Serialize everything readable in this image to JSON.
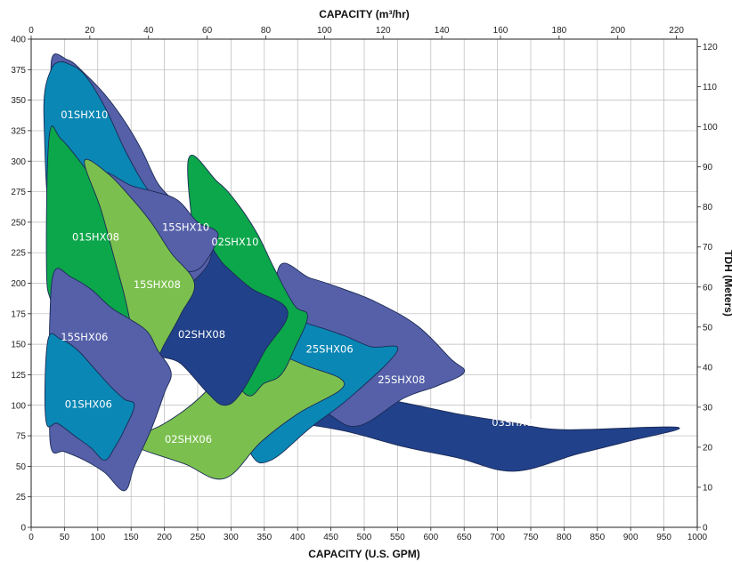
{
  "chart_data": {
    "type": "area",
    "title": "",
    "xlabel_bottom": "CAPACITY (U.S. GPM)",
    "xlabel_top": "CAPACITY (m³/hr)",
    "ylabel_left": "",
    "ylabel_right": "TDH (Meters)",
    "xlim": [
      0,
      1000
    ],
    "ylim": [
      0,
      400
    ],
    "x_top_lim": [
      0,
      227.1
    ],
    "y_right_lim": [
      0,
      121.9
    ],
    "x_ticks": [
      0,
      50,
      100,
      150,
      200,
      250,
      300,
      350,
      400,
      450,
      500,
      550,
      600,
      650,
      700,
      750,
      800,
      850,
      900,
      950,
      1000
    ],
    "y_ticks": [
      0,
      25,
      50,
      75,
      100,
      125,
      150,
      175,
      200,
      225,
      250,
      275,
      300,
      325,
      350,
      375,
      400
    ],
    "x_top_ticks": [
      0,
      20,
      40,
      60,
      80,
      100,
      120,
      140,
      160,
      180,
      200,
      220
    ],
    "y_right_ticks": [
      0,
      10,
      20,
      30,
      40,
      50,
      60,
      70,
      80,
      90,
      100,
      110,
      120
    ],
    "grid": true,
    "series": [
      {
        "name": "03SHX08",
        "color": "#21418a",
        "label_at": [
          727,
          86
        ],
        "outline": [
          [
            415,
            123
          ],
          [
            480,
            110
          ],
          [
            560,
            102
          ],
          [
            640,
            93
          ],
          [
            720,
            86
          ],
          [
            800,
            80
          ],
          [
            970,
            82
          ],
          [
            900,
            71
          ],
          [
            820,
            60
          ],
          [
            725,
            46
          ],
          [
            640,
            57
          ],
          [
            560,
            66
          ],
          [
            470,
            79
          ],
          [
            390,
            86
          ],
          [
            330,
            90
          ]
        ]
      },
      {
        "name": "25SHX08",
        "color": "#5560a9",
        "label_at": [
          555,
          121
        ],
        "outline": [
          [
            370,
            210
          ],
          [
            420,
            204
          ],
          [
            470,
            195
          ],
          [
            520,
            184
          ],
          [
            580,
            165
          ],
          [
            630,
            138
          ],
          [
            650,
            127
          ],
          [
            610,
            116
          ],
          [
            560,
            106
          ],
          [
            490,
            83
          ],
          [
            440,
            95
          ],
          [
            380,
            113
          ]
        ]
      },
      {
        "name": "25SHX06",
        "color": "#0a87b4",
        "label_at": [
          448,
          146
        ],
        "outline": [
          [
            370,
            172
          ],
          [
            420,
            166
          ],
          [
            470,
            157
          ],
          [
            510,
            148
          ],
          [
            550,
            145
          ],
          [
            480,
            107
          ],
          [
            420,
            82
          ],
          [
            360,
            55
          ],
          [
            330,
            60
          ],
          [
            310,
            100
          ]
        ]
      },
      {
        "name": "02SHX06",
        "color": "#7bc04e",
        "label_at": [
          237,
          73
        ],
        "outline": [
          [
            200,
            85
          ],
          [
            260,
            110
          ],
          [
            310,
            145
          ],
          [
            360,
            143
          ],
          [
            410,
            133
          ],
          [
            470,
            117
          ],
          [
            400,
            93
          ],
          [
            345,
            70
          ],
          [
            290,
            40
          ],
          [
            230,
            52
          ],
          [
            170,
            63
          ],
          [
            140,
            70
          ]
        ]
      },
      {
        "name": "02SHX10",
        "color": "#0ca64b",
        "label_at": [
          305,
          260
        ],
        "outline": [
          [
            235,
            297
          ],
          [
            280,
            283
          ],
          [
            310,
            265
          ],
          [
            340,
            240
          ],
          [
            365,
            212
          ],
          [
            395,
            182
          ],
          [
            415,
            173
          ],
          [
            395,
            146
          ],
          [
            375,
            125
          ],
          [
            350,
            118
          ],
          [
            320,
            110
          ],
          [
            270,
            160
          ]
        ]
      },
      {
        "name": "02SHX08",
        "color": "#21418a",
        "label_at": [
          257,
          158
        ],
        "outline": [
          [
            255,
            233
          ],
          [
            290,
            215
          ],
          [
            330,
            196
          ],
          [
            385,
            177
          ],
          [
            350,
            144
          ],
          [
            315,
            110
          ],
          [
            290,
            100
          ],
          [
            265,
            110
          ],
          [
            225,
            134
          ],
          [
            190,
            145
          ],
          [
            225,
            180
          ]
        ]
      },
      {
        "name": "01SHX10",
        "color": "#5560a9",
        "label_at": [
          88,
          340
        ],
        "outline": [
          [
            30,
            380
          ],
          [
            55,
            383
          ],
          [
            80,
            372
          ],
          [
            110,
            355
          ],
          [
            140,
            333
          ],
          [
            165,
            310
          ],
          [
            190,
            282
          ],
          [
            215,
            266
          ],
          [
            240,
            243
          ],
          [
            270,
            225
          ],
          [
            250,
            205
          ],
          [
            215,
            195
          ],
          [
            175,
            200
          ],
          [
            140,
            215
          ],
          [
            105,
            240
          ],
          [
            75,
            270
          ],
          [
            45,
            300
          ]
        ]
      },
      {
        "name": "01SHX10-inner",
        "color": "#0a87b4",
        "label_at": [
          88,
          340
        ],
        "outline": [
          [
            30,
            375
          ],
          [
            40,
            381
          ],
          [
            55,
            380
          ],
          [
            80,
            371
          ],
          [
            110,
            345
          ],
          [
            140,
            310
          ],
          [
            165,
            285
          ],
          [
            190,
            265
          ],
          [
            205,
            248
          ],
          [
            180,
            230
          ],
          [
            140,
            225
          ],
          [
            100,
            230
          ],
          [
            60,
            240
          ],
          [
            35,
            250
          ],
          [
            25,
            265
          ],
          [
            20,
            320
          ],
          [
            20,
            355
          ]
        ]
      },
      {
        "name": "15SHX10",
        "color": "#5560a9",
        "label_at": [
          235,
          250
        ],
        "outline": [
          [
            110,
            290
          ],
          [
            150,
            280
          ],
          [
            185,
            275
          ],
          [
            220,
            268
          ],
          [
            250,
            250
          ],
          [
            275,
            244
          ],
          [
            280,
            237
          ],
          [
            265,
            220
          ],
          [
            245,
            210
          ],
          [
            215,
            213
          ],
          [
            190,
            230
          ],
          [
            165,
            240
          ],
          [
            130,
            260
          ]
        ]
      },
      {
        "name": "01SHX08",
        "color": "#0ca64b",
        "label_at": [
          97,
          240
        ],
        "outline": [
          [
            23,
            213
          ],
          [
            27,
            320
          ],
          [
            45,
            318
          ],
          [
            80,
            295
          ],
          [
            120,
            265
          ],
          [
            160,
            240
          ],
          [
            195,
            225
          ],
          [
            210,
            215
          ],
          [
            215,
            190
          ],
          [
            180,
            175
          ],
          [
            130,
            165
          ],
          [
            80,
            160
          ],
          [
            45,
            165
          ],
          [
            30,
            185
          ]
        ]
      },
      {
        "name": "15SHX08",
        "color": "#7bc04e",
        "label_at": [
          195,
          200
        ],
        "outline": [
          [
            80,
            300
          ],
          [
            115,
            290
          ],
          [
            150,
            270
          ],
          [
            180,
            250
          ],
          [
            210,
            225
          ],
          [
            245,
            200
          ],
          [
            225,
            175
          ],
          [
            200,
            150
          ],
          [
            180,
            130
          ],
          [
            160,
            140
          ],
          [
            150,
            165
          ],
          [
            140,
            190
          ],
          [
            125,
            220
          ],
          [
            105,
            260
          ]
        ]
      },
      {
        "name": "15SHX06",
        "color": "#5560a9",
        "label_at": [
          82,
          150
        ],
        "outline": [
          [
            35,
            210
          ],
          [
            60,
            205
          ],
          [
            90,
            195
          ],
          [
            120,
            180
          ],
          [
            150,
            170
          ],
          [
            175,
            160
          ],
          [
            190,
            145
          ],
          [
            210,
            127
          ],
          [
            200,
            110
          ],
          [
            180,
            80
          ],
          [
            155,
            50
          ],
          [
            140,
            30
          ],
          [
            110,
            45
          ],
          [
            80,
            55
          ],
          [
            50,
            62
          ],
          [
            30,
            65
          ],
          [
            28,
            110
          ],
          [
            28,
            170
          ]
        ]
      },
      {
        "name": "01SHX06",
        "color": "#0a87b4",
        "label_at": [
          65,
          101
        ],
        "outline": [
          [
            25,
            153
          ],
          [
            45,
            154
          ],
          [
            70,
            145
          ],
          [
            95,
            130
          ],
          [
            120,
            115
          ],
          [
            140,
            105
          ],
          [
            155,
            100
          ],
          [
            140,
            80
          ],
          [
            125,
            65
          ],
          [
            110,
            55
          ],
          [
            90,
            65
          ],
          [
            65,
            75
          ],
          [
            40,
            85
          ],
          [
            22,
            88
          ]
        ]
      }
    ],
    "region_labels": [
      {
        "text": "01SHX10",
        "x": 80,
        "y": 338
      },
      {
        "text": "01SHX08",
        "x": 97,
        "y": 238
      },
      {
        "text": "15SHX10",
        "x": 232,
        "y": 246
      },
      {
        "text": "02SHX10",
        "x": 306,
        "y": 234
      },
      {
        "text": "15SHX08",
        "x": 189,
        "y": 199
      },
      {
        "text": "02SHX08",
        "x": 256,
        "y": 158
      },
      {
        "text": "15SHX06",
        "x": 80,
        "y": 156
      },
      {
        "text": "25SHX06",
        "x": 448,
        "y": 146
      },
      {
        "text": "25SHX08",
        "x": 556,
        "y": 121
      },
      {
        "text": "01SHX06",
        "x": 86,
        "y": 101
      },
      {
        "text": "03SHX08",
        "x": 727,
        "y": 86
      },
      {
        "text": "02SHX06",
        "x": 236,
        "y": 72
      }
    ]
  }
}
